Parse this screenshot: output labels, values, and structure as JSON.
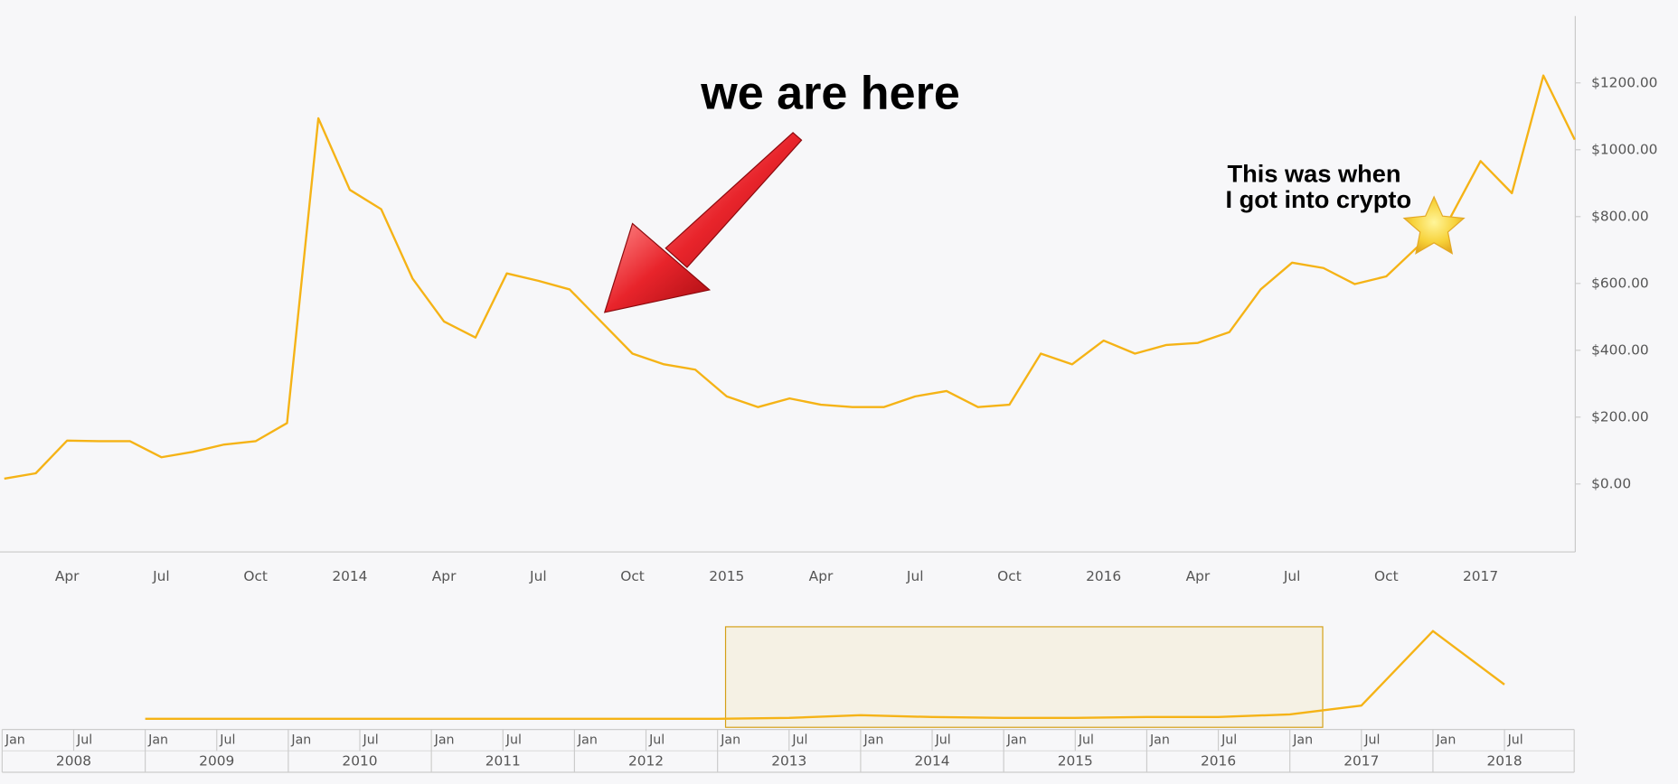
{
  "chart_data": [
    {
      "type": "line",
      "color": "#f5b316",
      "categories": [
        null,
        null,
        "Apr",
        null,
        null,
        "Jul",
        null,
        null,
        "Oct",
        null,
        null,
        "2014",
        null,
        null,
        "Apr",
        null,
        null,
        "Jul",
        null,
        null,
        "Oct",
        null,
        null,
        "2015",
        null,
        null,
        "Apr",
        null,
        null,
        "Jul",
        null,
        null,
        "Oct",
        null,
        null,
        "2016",
        null,
        null,
        "Apr",
        null,
        null,
        "Jul",
        null,
        null,
        "Oct",
        null,
        null,
        "2017",
        null,
        null,
        null
      ],
      "values": [
        16,
        32,
        130,
        128,
        128,
        80,
        96,
        118,
        128,
        182,
        1094,
        880,
        822,
        614,
        486,
        438,
        630,
        608,
        582,
        486,
        390,
        358,
        342,
        262,
        230,
        256,
        237,
        230,
        230,
        262,
        278,
        230,
        237,
        390,
        358,
        429,
        390,
        416,
        422,
        454,
        582,
        662,
        646,
        598,
        621,
        710,
        790,
        966,
        870,
        1222,
        1030
      ],
      "ylim": [
        -200,
        1400
      ],
      "yticks": [
        {
          "value": 0,
          "label": "$0.00"
        },
        {
          "value": 200,
          "label": "$200.00"
        },
        {
          "value": 400,
          "label": "$400.00"
        },
        {
          "value": 600,
          "label": "$600.00"
        },
        {
          "value": 800,
          "label": "$800.00"
        },
        {
          "value": 1000,
          "label": "$1000.00"
        },
        {
          "value": 1200,
          "label": "$1200.00"
        }
      ],
      "annotations": [
        "we are here",
        "This was when",
        "I got into crypto"
      ]
    },
    {
      "type": "line",
      "color": "#f5b316",
      "categories": [
        "Jan",
        "Jul",
        "Jan",
        "Jul",
        "Jan",
        "Jul",
        "Jan",
        "Jul",
        "Jan",
        "Jul",
        "Jan",
        "Jul",
        "Jan",
        "Jul",
        "Jan",
        "Jul",
        "Jan",
        "Jul",
        "Jan",
        "Jul",
        "Jan",
        "Jul"
      ],
      "years": [
        "2008",
        "2009",
        "2010",
        "2011",
        "2012",
        "2013",
        "2014",
        "2015",
        "2016",
        "2017",
        "2018"
      ],
      "values": [
        null,
        null,
        0,
        0,
        0,
        0,
        0,
        0,
        0,
        0,
        0,
        1,
        4,
        2,
        1,
        1,
        2,
        2,
        5,
        15,
        100,
        39
      ],
      "ylim": [
        0,
        110
      ]
    }
  ]
}
